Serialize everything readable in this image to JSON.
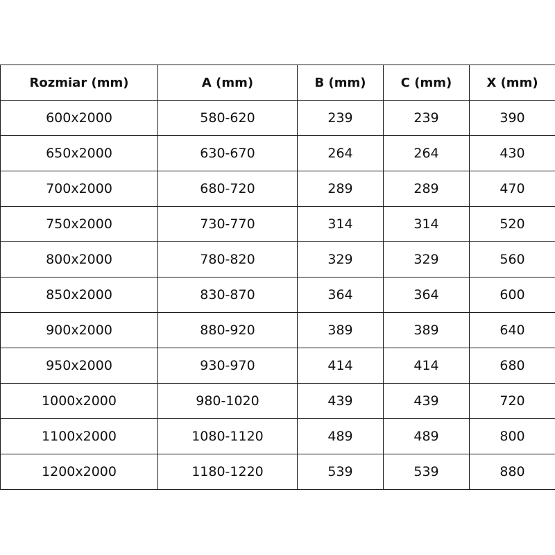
{
  "table": {
    "headers": [
      "Rozmiar (mm)",
      "A (mm)",
      "B (mm)",
      "C (mm)",
      "X (mm)"
    ],
    "rows": [
      [
        "600x2000",
        "580-620",
        "239",
        "239",
        "390"
      ],
      [
        "650x2000",
        "630-670",
        "264",
        "264",
        "430"
      ],
      [
        "700x2000",
        "680-720",
        "289",
        "289",
        "470"
      ],
      [
        "750x2000",
        "730-770",
        "314",
        "314",
        "520"
      ],
      [
        "800x2000",
        "780-820",
        "329",
        "329",
        "560"
      ],
      [
        "850x2000",
        "830-870",
        "364",
        "364",
        "600"
      ],
      [
        "900x2000",
        "880-920",
        "389",
        "389",
        "640"
      ],
      [
        "950x2000",
        "930-970",
        "414",
        "414",
        "680"
      ],
      [
        "1000x2000",
        "980-1020",
        "439",
        "439",
        "720"
      ],
      [
        "1100x2000",
        "1080-1120",
        "489",
        "489",
        "800"
      ],
      [
        "1200x2000",
        "1180-1220",
        "539",
        "539",
        "880"
      ]
    ]
  }
}
